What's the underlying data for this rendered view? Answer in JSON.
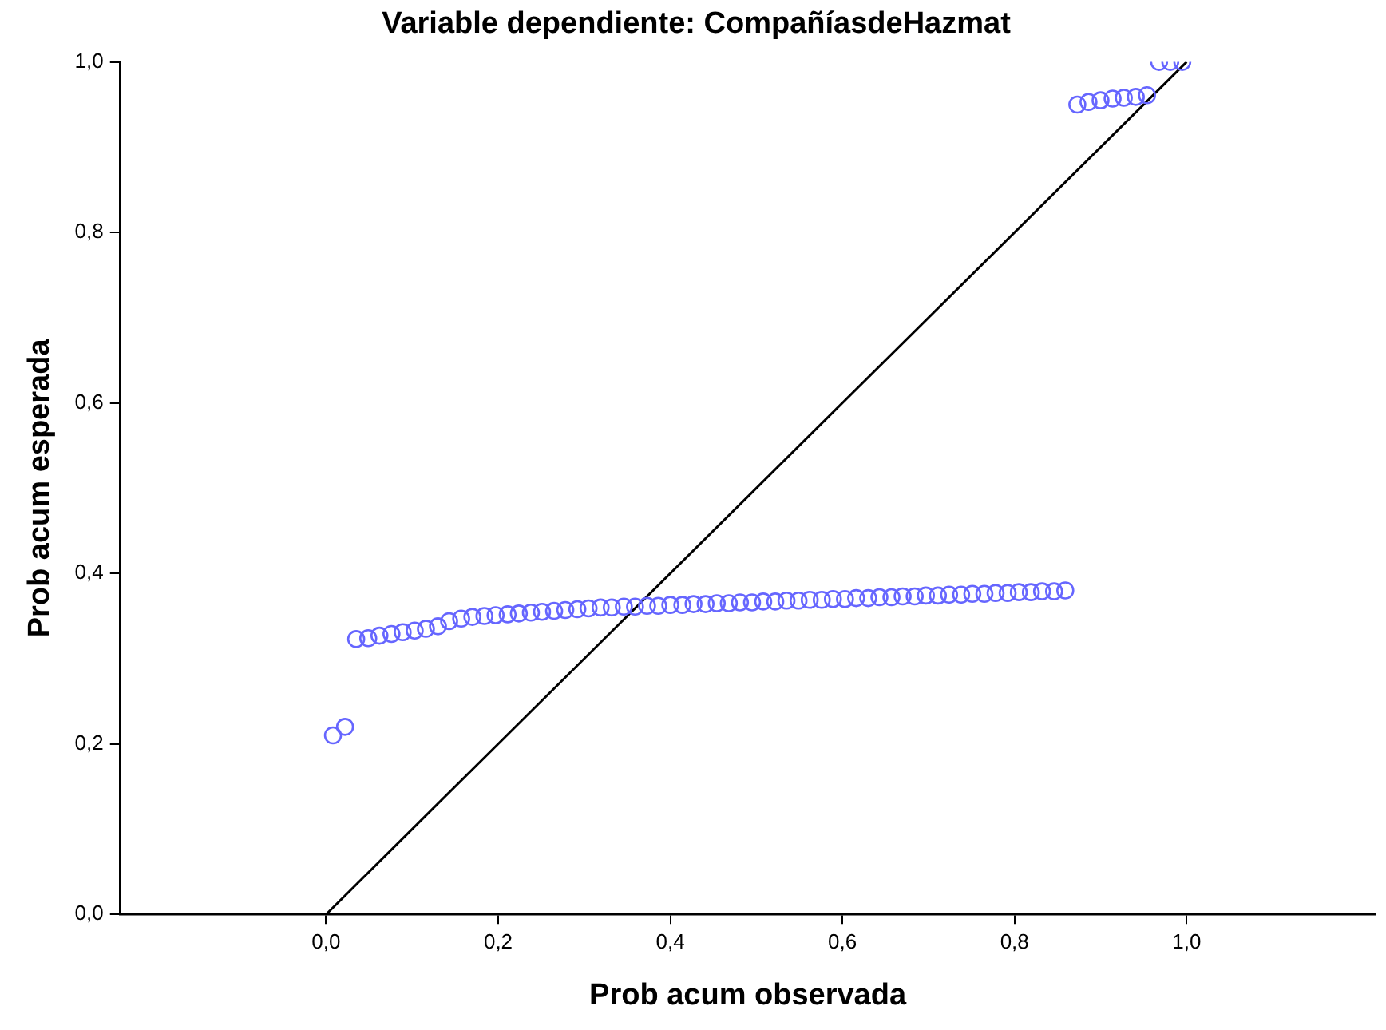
{
  "chart_data": {
    "type": "scatter",
    "title": "Variable dependiente: CompañíasdeHazmat",
    "xlabel": "Prob acum observada",
    "ylabel": "Prob acum esperada",
    "series": [
      {
        "type": "scatter",
        "color": "#6666ff",
        "marker": "circle",
        "x": [
          0.008,
          0.022,
          0.035,
          0.049,
          0.062,
          0.076,
          0.089,
          0.103,
          0.116,
          0.13,
          0.143,
          0.157,
          0.17,
          0.184,
          0.197,
          0.211,
          0.224,
          0.238,
          0.251,
          0.265,
          0.278,
          0.292,
          0.305,
          0.319,
          0.332,
          0.346,
          0.359,
          0.373,
          0.386,
          0.4,
          0.414,
          0.427,
          0.441,
          0.454,
          0.468,
          0.481,
          0.495,
          0.508,
          0.522,
          0.535,
          0.549,
          0.562,
          0.576,
          0.589,
          0.603,
          0.616,
          0.63,
          0.643,
          0.657,
          0.67,
          0.684,
          0.697,
          0.711,
          0.724,
          0.738,
          0.751,
          0.765,
          0.778,
          0.792,
          0.805,
          0.819,
          0.832,
          0.846,
          0.859,
          0.873,
          0.886,
          0.9,
          0.914,
          0.927,
          0.941,
          0.954,
          0.968,
          0.981,
          0.995
        ],
        "values": [
          0.21,
          0.22,
          0.323,
          0.324,
          0.327,
          0.329,
          0.331,
          0.333,
          0.335,
          0.338,
          0.344,
          0.347,
          0.349,
          0.35,
          0.351,
          0.352,
          0.353,
          0.354,
          0.355,
          0.356,
          0.357,
          0.358,
          0.359,
          0.36,
          0.36,
          0.361,
          0.361,
          0.362,
          0.362,
          0.363,
          0.363,
          0.364,
          0.364,
          0.365,
          0.365,
          0.366,
          0.366,
          0.367,
          0.367,
          0.368,
          0.368,
          0.369,
          0.369,
          0.37,
          0.37,
          0.371,
          0.371,
          0.372,
          0.372,
          0.373,
          0.373,
          0.374,
          0.374,
          0.375,
          0.375,
          0.376,
          0.376,
          0.377,
          0.377,
          0.378,
          0.378,
          0.379,
          0.379,
          0.38,
          0.95,
          0.953,
          0.955,
          0.957,
          0.958,
          0.959,
          0.961,
          1.0,
          1.0,
          1.0
        ]
      },
      {
        "type": "line",
        "color": "#000000",
        "marker": "none",
        "line_style": "solid",
        "x": [
          0,
          1
        ],
        "values": [
          0,
          1
        ]
      }
    ],
    "xlim": [
      -0.24,
      1.22
    ],
    "ylim": [
      0,
      1
    ],
    "xticks": [
      {
        "value": 0,
        "label": "0,0"
      },
      {
        "value": 0.2,
        "label": "0,2"
      },
      {
        "value": 0.4,
        "label": "0,4"
      },
      {
        "value": 0.6,
        "label": "0,6"
      },
      {
        "value": 0.8,
        "label": "0,8"
      },
      {
        "value": 1,
        "label": "1,0"
      }
    ],
    "yticks": [
      {
        "value": 0,
        "label": "0,0"
      },
      {
        "value": 0.2,
        "label": "0,2"
      },
      {
        "value": 0.4,
        "label": "0,4"
      },
      {
        "value": 0.6,
        "label": "0,6"
      },
      {
        "value": 0.8,
        "label": "0,8"
      },
      {
        "value": 1,
        "label": "1,0"
      }
    ],
    "grid": false,
    "legend": false
  }
}
